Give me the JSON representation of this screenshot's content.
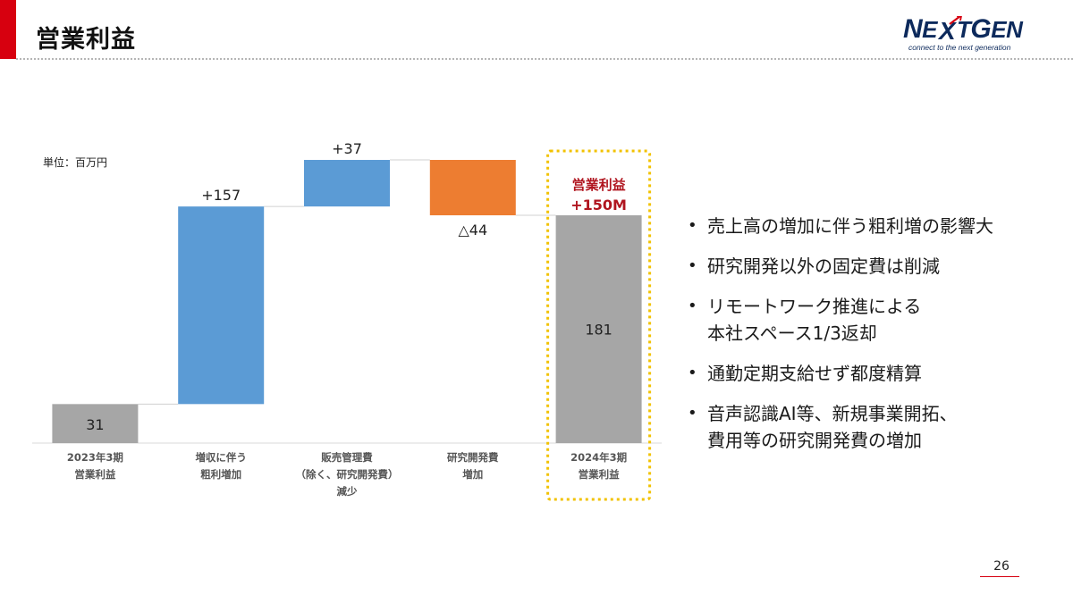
{
  "header": {
    "title": "営業利益",
    "logo_word_start": "N",
    "logo_word_mid": "E",
    "logo_word_x": "X",
    "logo_word_t": "T",
    "logo_word_g": "G",
    "logo_word_end": "EN",
    "logo_tagline": "connect to the next generation"
  },
  "chart_data": {
    "type": "waterfall",
    "unit_label": "単位：百万円",
    "ylim": [
      0,
      220
    ],
    "bars": [
      {
        "kind": "total",
        "start": 0,
        "end": 31,
        "label": "31",
        "category": [
          "2023年3期",
          "営業利益"
        ],
        "color": "#a6a6a6"
      },
      {
        "kind": "increase",
        "start": 31,
        "end": 188,
        "label": "+157",
        "category": [
          "増収に伴う",
          "粗利増加"
        ],
        "color": "#5b9bd5"
      },
      {
        "kind": "increase",
        "start": 188,
        "end": 225,
        "label": "+37",
        "category": [
          "販売管理費",
          "（除く、研究開発費）",
          "減少"
        ],
        "color": "#5b9bd5"
      },
      {
        "kind": "decrease",
        "start": 225,
        "end": 181,
        "label": "△44",
        "category": [
          "研究開発費",
          "増加"
        ],
        "color": "#ed7d31"
      },
      {
        "kind": "total",
        "start": 0,
        "end": 181,
        "label": "181",
        "category": [
          "2024年3期",
          "営業利益"
        ],
        "color": "#a6a6a6"
      }
    ],
    "highlight": {
      "title": "営業利益",
      "value": "+150M",
      "color": "#b0151f",
      "border_color": "#f2c200"
    }
  },
  "bullets": [
    [
      "売上高の増加に伴う粗利増の影響大"
    ],
    [
      "研究開発以外の固定費は削減"
    ],
    [
      "リモートワーク推進による",
      "本社スペース1/3返却"
    ],
    [
      "通勤定期支給せず都度精算"
    ],
    [
      "音声認識AI等、新規事業開拓、",
      "費用等の研究開発費の増加"
    ]
  ],
  "page_number": "26"
}
